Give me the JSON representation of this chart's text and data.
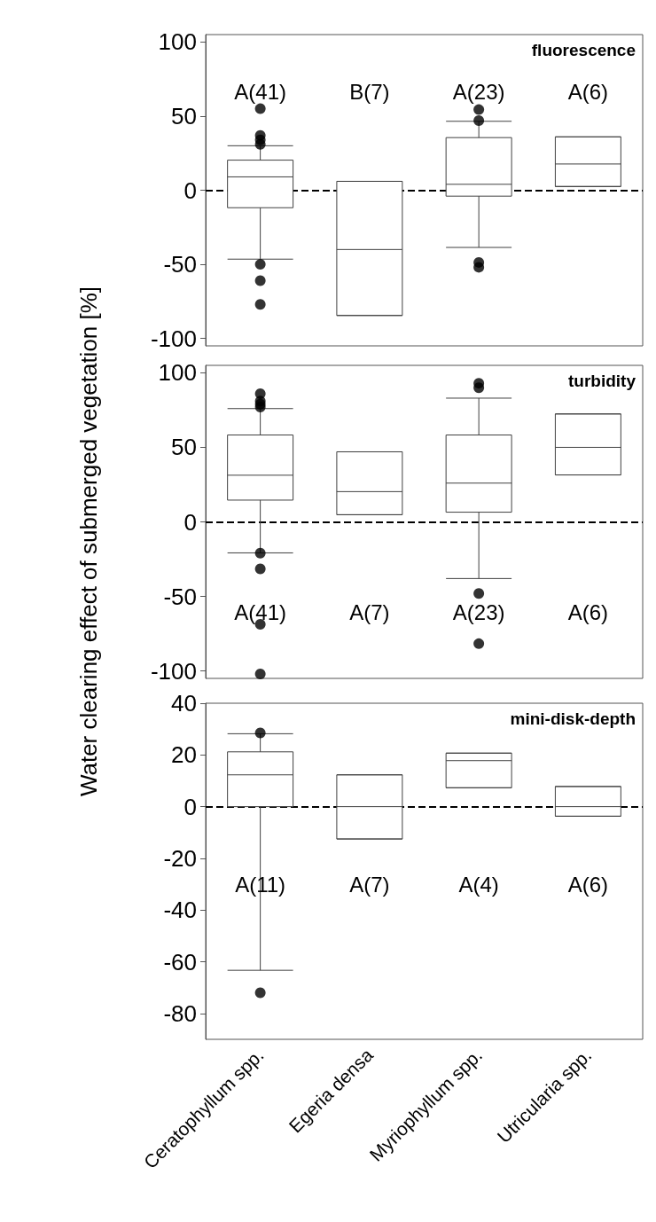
{
  "chart_data": [
    {
      "type": "box",
      "title": "fluorescence",
      "categories": [
        null,
        null,
        null,
        null
      ],
      "boxes": [
        {
          "low": -46.5,
          "q1": -11.8,
          "median": 9,
          "q3": 20.3,
          "high": 30,
          "outliers": [
            55,
            37,
            34,
            31,
            -50,
            -61,
            -77
          ]
        },
        {
          "low": -84.5,
          "q1": -84.5,
          "median": -40,
          "q3": 6,
          "high": 6
        },
        {
          "low": -38.6,
          "q1": -4,
          "median": 4,
          "q3": 35.5,
          "high": 46.5,
          "outliers": [
            54.4,
            47,
            -48.7,
            -52
          ]
        },
        {
          "low": 2.5,
          "q1": 2.5,
          "median": 17.7,
          "q3": 36,
          "high": 36
        }
      ],
      "ylim": [
        -105,
        105
      ],
      "yticks": [
        -100,
        -50,
        0,
        50,
        100
      ],
      "tick_labels": "y",
      "ref_lines": [
        {
          "axis": "y",
          "value": 0,
          "line_style": "dashed"
        }
      ],
      "annotations": [
        "A(41)",
        "B(7)",
        "A(23)",
        "A(6)"
      ]
    },
    {
      "type": "box",
      "title": "turbidity",
      "ylabel": "Water clearing effect of submerged vegetation [%]",
      "categories": [
        null,
        null,
        null,
        null
      ],
      "boxes": [
        {
          "low": -20.8,
          "q1": 14.6,
          "median": 31.3,
          "q3": 58.3,
          "high": 76,
          "outliers": [
            86,
            81,
            79,
            77,
            -21,
            -31.5,
            -68.7,
            -102
          ]
        },
        {
          "low": 4.8,
          "q1": 4.8,
          "median": 20.3,
          "q3": 47,
          "high": 47
        },
        {
          "low": -38,
          "q1": 6.5,
          "median": 26,
          "q3": 58.3,
          "high": 83,
          "outliers": [
            93,
            90,
            -48,
            -81.7
          ]
        },
        {
          "low": 31.5,
          "q1": 31.5,
          "median": 50,
          "q3": 72.4,
          "high": 72.4
        }
      ],
      "ylim": [
        -105,
        105
      ],
      "yticks": [
        -100,
        -50,
        0,
        50,
        100
      ],
      "tick_labels": "y",
      "ref_lines": [
        {
          "axis": "y",
          "value": 0,
          "line_style": "dashed"
        }
      ],
      "annotations": [
        "A(41)",
        "A(7)",
        "A(23)",
        "A(6)"
      ]
    },
    {
      "type": "box",
      "title": "mini-disk-depth",
      "categories": [
        "Ceratophyllum spp.",
        "Egeria densa",
        "Myriophyllum spp.",
        "Utricularia spp."
      ],
      "boxes": [
        {
          "low": -63.3,
          "q1": 0,
          "median": 12.3,
          "q3": 21.2,
          "high": 28.2,
          "outliers": [
            28.5,
            -72
          ]
        },
        {
          "low": -12.5,
          "q1": -12.5,
          "median": 0,
          "q3": 12.3,
          "high": 12.3
        },
        {
          "low": 7.3,
          "q1": 7.3,
          "median": 17.8,
          "q3": 20.7,
          "high": 20.7
        },
        {
          "low": -3.7,
          "q1": -3.7,
          "median": 0,
          "q3": 7.8,
          "high": 7.8
        }
      ],
      "ylim": [
        -90,
        40
      ],
      "yticks": [
        -80,
        -60,
        -40,
        -20,
        0,
        20,
        40
      ],
      "ref_lines": [
        {
          "axis": "y",
          "value": 0,
          "line_style": "dashed"
        }
      ],
      "annotations": [
        "A(11)",
        "A(7)",
        "A(4)",
        "A(6)"
      ]
    }
  ]
}
